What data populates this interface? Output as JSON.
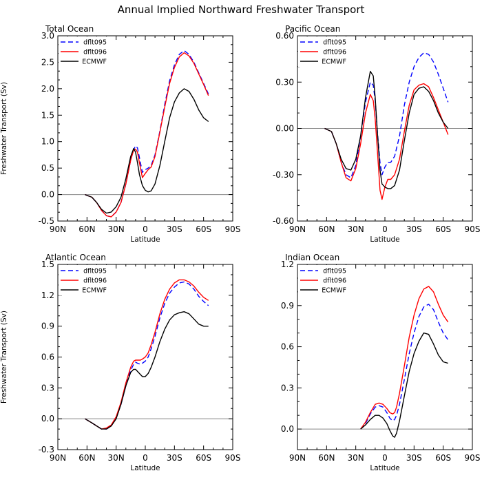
{
  "figure_title": "Annual Implied Northward Freshwater Transport",
  "chart_data": [
    {
      "type": "line",
      "title": "Total Ocean",
      "xlabel": "Latitude",
      "ylabel": "Freshwater Transport (Sv)",
      "x_ticks": [
        "90N",
        "60N",
        "30N",
        "0",
        "30S",
        "60S",
        "90S"
      ],
      "y_ticks": [
        "-0.5",
        "0.0",
        "0.5",
        "1.0",
        "1.5",
        "2.0",
        "2.5",
        "3.0"
      ],
      "xlim": [
        -90,
        90
      ],
      "ylim": [
        -0.5,
        3.0
      ],
      "zero_line": true,
      "legend_position": "top-left",
      "series": [
        {
          "name": "dflt095",
          "color": "#0000ff",
          "dash": "dashed",
          "x": [
            -62,
            -55,
            -50,
            -45,
            -40,
            -35,
            -30,
            -25,
            -20,
            -15,
            -12,
            -10,
            -8,
            -6,
            -3,
            0,
            3,
            6,
            10,
            15,
            20,
            25,
            30,
            35,
            40,
            45,
            50,
            55,
            60,
            65
          ],
          "y": [
            0.0,
            -0.05,
            -0.15,
            -0.3,
            -0.4,
            -0.42,
            -0.33,
            -0.15,
            0.2,
            0.65,
            0.85,
            0.92,
            0.88,
            0.7,
            0.42,
            0.47,
            0.5,
            0.55,
            0.75,
            1.2,
            1.7,
            2.15,
            2.45,
            2.65,
            2.72,
            2.65,
            2.5,
            2.3,
            2.1,
            1.9
          ]
        },
        {
          "name": "dflt096",
          "color": "#ff0000",
          "dash": "solid",
          "x": [
            -62,
            -55,
            -50,
            -45,
            -40,
            -35,
            -30,
            -25,
            -20,
            -15,
            -12,
            -10,
            -8,
            -6,
            -3,
            0,
            3,
            6,
            10,
            15,
            20,
            25,
            30,
            35,
            40,
            45,
            50,
            55,
            60,
            65
          ],
          "y": [
            0.0,
            -0.05,
            -0.15,
            -0.3,
            -0.4,
            -0.42,
            -0.33,
            -0.15,
            0.2,
            0.65,
            0.84,
            0.86,
            0.8,
            0.6,
            0.32,
            0.4,
            0.47,
            0.52,
            0.72,
            1.18,
            1.65,
            2.1,
            2.4,
            2.6,
            2.68,
            2.62,
            2.48,
            2.28,
            2.08,
            1.87
          ]
        },
        {
          "name": "ECMWF",
          "color": "#000000",
          "dash": "solid",
          "x": [
            -62,
            -55,
            -50,
            -45,
            -40,
            -35,
            -30,
            -25,
            -20,
            -15,
            -12,
            -10,
            -8,
            -6,
            -3,
            0,
            3,
            6,
            10,
            15,
            20,
            25,
            30,
            35,
            40,
            45,
            50,
            55,
            60,
            65
          ],
          "y": [
            0.0,
            -0.05,
            -0.15,
            -0.28,
            -0.35,
            -0.33,
            -0.23,
            -0.05,
            0.3,
            0.72,
            0.87,
            0.8,
            0.6,
            0.38,
            0.17,
            0.08,
            0.05,
            0.07,
            0.2,
            0.55,
            1.0,
            1.45,
            1.75,
            1.92,
            2.0,
            1.95,
            1.8,
            1.6,
            1.45,
            1.38
          ]
        }
      ]
    },
    {
      "type": "line",
      "title": "Pacific Ocean",
      "xlabel": "Latitude",
      "ylabel": "",
      "x_ticks": [
        "90N",
        "60N",
        "30N",
        "0",
        "30S",
        "60S",
        "90S"
      ],
      "y_ticks": [
        "-0.60",
        "-0.30",
        "0.00",
        "0.30",
        "0.60"
      ],
      "xlim": [
        -90,
        90
      ],
      "ylim": [
        -0.6,
        0.6
      ],
      "zero_line": true,
      "legend_position": "top-left",
      "series": [
        {
          "name": "dflt095",
          "color": "#0000ff",
          "dash": "dashed",
          "x": [
            -62,
            -55,
            -50,
            -45,
            -40,
            -35,
            -30,
            -25,
            -20,
            -15,
            -12,
            -10,
            -8,
            -5,
            -3,
            0,
            3,
            6,
            10,
            15,
            20,
            25,
            30,
            35,
            40,
            45,
            50,
            55,
            60,
            65
          ],
          "y": [
            0.0,
            -0.02,
            -0.1,
            -0.22,
            -0.3,
            -0.32,
            -0.24,
            -0.05,
            0.17,
            0.3,
            0.28,
            0.18,
            0.0,
            -0.22,
            -0.3,
            -0.25,
            -0.22,
            -0.22,
            -0.18,
            -0.05,
            0.15,
            0.3,
            0.4,
            0.46,
            0.49,
            0.48,
            0.43,
            0.35,
            0.26,
            0.17
          ]
        },
        {
          "name": "dflt096",
          "color": "#ff0000",
          "dash": "solid",
          "x": [
            -62,
            -55,
            -50,
            -45,
            -40,
            -35,
            -30,
            -25,
            -20,
            -15,
            -12,
            -10,
            -8,
            -5,
            -3,
            0,
            3,
            6,
            10,
            15,
            20,
            25,
            30,
            35,
            40,
            45,
            50,
            55,
            60,
            65
          ],
          "y": [
            0.0,
            -0.02,
            -0.1,
            -0.22,
            -0.32,
            -0.34,
            -0.26,
            -0.1,
            0.1,
            0.22,
            0.18,
            0.06,
            -0.12,
            -0.4,
            -0.46,
            -0.38,
            -0.33,
            -0.33,
            -0.3,
            -0.2,
            -0.02,
            0.15,
            0.25,
            0.28,
            0.29,
            0.27,
            0.2,
            0.12,
            0.04,
            -0.04
          ]
        },
        {
          "name": "ECMWF",
          "color": "#000000",
          "dash": "solid",
          "x": [
            -62,
            -55,
            -50,
            -45,
            -40,
            -35,
            -30,
            -25,
            -20,
            -15,
            -12,
            -10,
            -8,
            -5,
            -3,
            0,
            3,
            6,
            10,
            15,
            20,
            25,
            30,
            35,
            40,
            45,
            50,
            55,
            60,
            65
          ],
          "y": [
            0.0,
            -0.02,
            -0.1,
            -0.2,
            -0.26,
            -0.27,
            -0.2,
            -0.05,
            0.2,
            0.37,
            0.34,
            0.2,
            0.0,
            -0.27,
            -0.36,
            -0.38,
            -0.39,
            -0.39,
            -0.37,
            -0.27,
            -0.08,
            0.1,
            0.22,
            0.26,
            0.27,
            0.24,
            0.18,
            0.1,
            0.04,
            0.0
          ]
        }
      ]
    },
    {
      "type": "line",
      "title": "Atlantic Ocean",
      "xlabel": "Latitude",
      "ylabel": "Freshwater Transport (Sv)",
      "x_ticks": [
        "90N",
        "60N",
        "30N",
        "0",
        "30S",
        "60S",
        "90S"
      ],
      "y_ticks": [
        "-0.3",
        "0.0",
        "0.3",
        "0.6",
        "0.9",
        "1.2",
        "1.5"
      ],
      "xlim": [
        -90,
        90
      ],
      "ylim": [
        -0.3,
        1.5
      ],
      "zero_line": true,
      "legend_position": "top-left",
      "series": [
        {
          "name": "dflt095",
          "color": "#0000ff",
          "dash": "dashed",
          "x": [
            -62,
            -55,
            -50,
            -45,
            -40,
            -35,
            -30,
            -25,
            -20,
            -15,
            -12,
            -10,
            -8,
            -5,
            -3,
            0,
            3,
            6,
            10,
            15,
            20,
            25,
            30,
            35,
            40,
            45,
            50,
            55,
            60,
            65
          ],
          "y": [
            0.0,
            -0.04,
            -0.07,
            -0.1,
            -0.1,
            -0.07,
            0.01,
            0.14,
            0.32,
            0.47,
            0.53,
            0.55,
            0.54,
            0.53,
            0.54,
            0.56,
            0.6,
            0.68,
            0.8,
            0.98,
            1.12,
            1.22,
            1.28,
            1.32,
            1.33,
            1.31,
            1.26,
            1.19,
            1.14,
            1.1
          ]
        },
        {
          "name": "dflt096",
          "color": "#ff0000",
          "dash": "solid",
          "x": [
            -62,
            -55,
            -50,
            -45,
            -40,
            -35,
            -30,
            -25,
            -20,
            -15,
            -12,
            -10,
            -8,
            -5,
            -3,
            0,
            3,
            6,
            10,
            15,
            20,
            25,
            30,
            35,
            40,
            45,
            50,
            55,
            60,
            65
          ],
          "y": [
            0.0,
            -0.04,
            -0.07,
            -0.1,
            -0.09,
            -0.06,
            0.02,
            0.16,
            0.35,
            0.5,
            0.56,
            0.57,
            0.57,
            0.57,
            0.58,
            0.6,
            0.64,
            0.72,
            0.84,
            1.02,
            1.16,
            1.26,
            1.32,
            1.35,
            1.35,
            1.33,
            1.29,
            1.23,
            1.18,
            1.15
          ]
        },
        {
          "name": "ECMWF",
          "color": "#000000",
          "dash": "solid",
          "x": [
            -62,
            -55,
            -50,
            -45,
            -40,
            -35,
            -30,
            -25,
            -20,
            -15,
            -12,
            -10,
            -8,
            -5,
            -3,
            0,
            3,
            6,
            10,
            15,
            20,
            25,
            30,
            35,
            40,
            45,
            50,
            55,
            60,
            65
          ],
          "y": [
            0.0,
            -0.04,
            -0.07,
            -0.1,
            -0.1,
            -0.07,
            0.0,
            0.14,
            0.32,
            0.45,
            0.48,
            0.48,
            0.46,
            0.43,
            0.41,
            0.41,
            0.44,
            0.5,
            0.6,
            0.75,
            0.87,
            0.96,
            1.01,
            1.03,
            1.04,
            1.02,
            0.97,
            0.92,
            0.9,
            0.9
          ]
        }
      ]
    },
    {
      "type": "line",
      "title": "Indian Ocean",
      "xlabel": "Latitude",
      "ylabel": "",
      "x_ticks": [
        "90N",
        "60N",
        "30N",
        "0",
        "30S",
        "60S",
        "90S"
      ],
      "y_ticks": [
        "0.0",
        "0.3",
        "0.6",
        "0.9",
        "1.2"
      ],
      "xlim": [
        -90,
        90
      ],
      "ylim": [
        -0.15,
        1.2
      ],
      "zero_line": true,
      "legend_position": "top-left",
      "series": [
        {
          "name": "dflt095",
          "color": "#0000ff",
          "dash": "dashed",
          "x": [
            -25,
            -20,
            -15,
            -10,
            -6,
            -2,
            2,
            5,
            8,
            10,
            12,
            15,
            20,
            25,
            30,
            35,
            40,
            45,
            50,
            55,
            60,
            65
          ],
          "y": [
            0.0,
            0.04,
            0.11,
            0.16,
            0.17,
            0.16,
            0.12,
            0.08,
            0.06,
            0.07,
            0.1,
            0.18,
            0.36,
            0.55,
            0.7,
            0.82,
            0.89,
            0.91,
            0.87,
            0.78,
            0.7,
            0.65
          ]
        },
        {
          "name": "dflt096",
          "color": "#ff0000",
          "dash": "solid",
          "x": [
            -25,
            -20,
            -15,
            -10,
            -6,
            -2,
            2,
            5,
            8,
            10,
            12,
            15,
            20,
            25,
            30,
            35,
            40,
            45,
            50,
            55,
            60,
            65
          ],
          "y": [
            0.0,
            0.05,
            0.12,
            0.18,
            0.19,
            0.18,
            0.15,
            0.12,
            0.11,
            0.12,
            0.16,
            0.26,
            0.46,
            0.67,
            0.83,
            0.95,
            1.02,
            1.04,
            1.0,
            0.91,
            0.83,
            0.78
          ]
        },
        {
          "name": "ECMWF",
          "color": "#000000",
          "dash": "solid",
          "x": [
            -25,
            -20,
            -15,
            -10,
            -6,
            -2,
            2,
            5,
            8,
            10,
            12,
            15,
            20,
            25,
            30,
            35,
            40,
            45,
            50,
            55,
            60,
            65
          ],
          "y": [
            0.0,
            0.03,
            0.07,
            0.1,
            0.1,
            0.08,
            0.04,
            -0.01,
            -0.05,
            -0.06,
            -0.03,
            0.06,
            0.24,
            0.42,
            0.55,
            0.64,
            0.7,
            0.69,
            0.62,
            0.54,
            0.49,
            0.48
          ]
        }
      ]
    }
  ]
}
